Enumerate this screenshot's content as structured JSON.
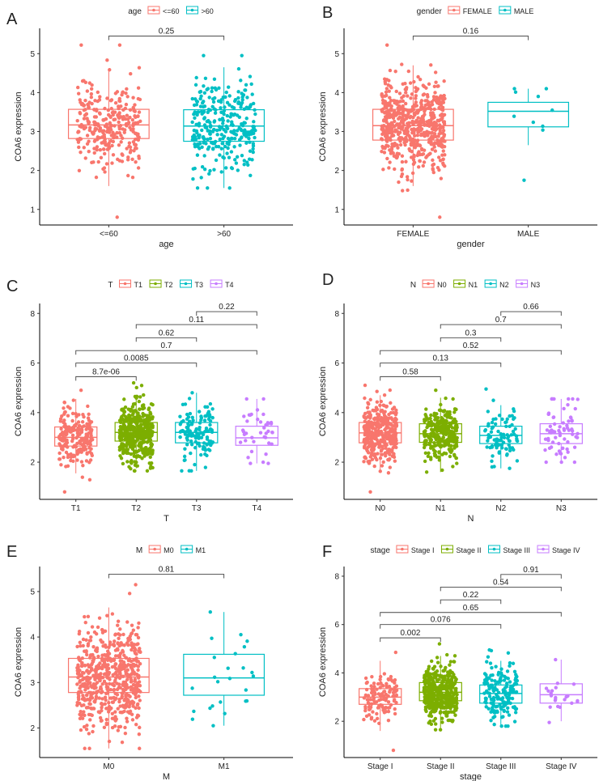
{
  "chart_data": [
    {
      "type": "box",
      "panel_label": "A",
      "legend_title": "age",
      "xlabel": "age",
      "ylabel": "COA6 expression",
      "ylim": [
        0.6,
        5.65
      ],
      "yticks": [
        1,
        2,
        3,
        4,
        5
      ],
      "grid": false,
      "legend_placement": "top",
      "groups": [
        {
          "name": "<=60",
          "color": "#F8766D",
          "q1": 2.82,
          "median": 3.17,
          "q3": 3.57,
          "whisker_low": 1.6,
          "whisker_high": 4.62,
          "n_points": 300,
          "min": 0.8,
          "max": 5.22
        },
        {
          "name": ">60",
          "color": "#00BFC4",
          "q1": 2.75,
          "median": 3.14,
          "q3": 3.56,
          "whisker_low": 1.55,
          "whisker_high": 4.65,
          "n_points": 300,
          "min": 1.55,
          "max": 4.95
        }
      ],
      "comparisons": [
        {
          "from": 0,
          "to": 1,
          "y": 5.45,
          "label": "0.25"
        }
      ]
    },
    {
      "type": "box",
      "panel_label": "B",
      "legend_title": "gender",
      "xlabel": "gender",
      "ylabel": "COA6 expression",
      "ylim": [
        0.6,
        5.65
      ],
      "yticks": [
        1,
        2,
        3,
        4,
        5
      ],
      "grid": false,
      "legend_placement": "top",
      "groups": [
        {
          "name": "FEMALE",
          "color": "#F8766D",
          "q1": 2.78,
          "median": 3.15,
          "q3": 3.57,
          "whisker_low": 1.6,
          "whisker_high": 4.7,
          "n_points": 600,
          "min": 0.8,
          "max": 5.22
        },
        {
          "name": "MALE",
          "color": "#00BFC4",
          "q1": 3.12,
          "median": 3.52,
          "q3": 3.75,
          "whisker_low": 2.65,
          "whisker_high": 4.1,
          "n_points": 10,
          "min": 1.75,
          "max": 4.1
        }
      ],
      "comparisons": [
        {
          "from": 0,
          "to": 1,
          "y": 5.45,
          "label": "0.16"
        }
      ]
    },
    {
      "type": "box",
      "panel_label": "C",
      "legend_title": "T",
      "xlabel": "T",
      "ylabel": "COA6 expression",
      "ylim": [
        0.5,
        8.4
      ],
      "yticks": [
        2,
        4,
        6,
        8
      ],
      "grid": false,
      "legend_placement": "top",
      "groups": [
        {
          "name": "T1",
          "color": "#F8766D",
          "q1": 2.65,
          "median": 3.0,
          "q3": 3.42,
          "whisker_low": 1.55,
          "whisker_high": 4.55,
          "n_points": 200,
          "min": 0.8,
          "max": 4.9
        },
        {
          "name": "T2",
          "color": "#7CAE00",
          "q1": 2.85,
          "median": 3.2,
          "q3": 3.6,
          "whisker_low": 1.75,
          "whisker_high": 4.7,
          "n_points": 450,
          "min": 1.65,
          "max": 5.2
        },
        {
          "name": "T3",
          "color": "#00BFC4",
          "q1": 2.78,
          "median": 3.2,
          "q3": 3.6,
          "whisker_low": 1.65,
          "whisker_high": 4.8,
          "n_points": 120,
          "min": 1.65,
          "max": 4.8
        },
        {
          "name": "T4",
          "color": "#C77CFF",
          "q1": 2.68,
          "median": 2.98,
          "q3": 3.45,
          "whisker_low": 1.95,
          "whisker_high": 4.55,
          "n_points": 40,
          "min": 1.95,
          "max": 4.55
        }
      ],
      "comparisons": [
        {
          "from": 0,
          "to": 1,
          "y": 5.45,
          "label": "8.7e-06"
        },
        {
          "from": 0,
          "to": 2,
          "y": 6.0,
          "label": "0.0085"
        },
        {
          "from": 0,
          "to": 3,
          "y": 6.5,
          "label": "0.7"
        },
        {
          "from": 1,
          "to": 2,
          "y": 7.02,
          "label": "0.62"
        },
        {
          "from": 1,
          "to": 3,
          "y": 7.55,
          "label": "0.11"
        },
        {
          "from": 2,
          "to": 3,
          "y": 8.07,
          "label": "0.22"
        }
      ]
    },
    {
      "type": "box",
      "panel_label": "D",
      "legend_title": "N",
      "xlabel": "N",
      "ylabel": "COA6 expression",
      "ylim": [
        0.5,
        8.4
      ],
      "yticks": [
        2,
        4,
        6,
        8
      ],
      "grid": false,
      "legend_placement": "top",
      "groups": [
        {
          "name": "N0",
          "color": "#F8766D",
          "q1": 2.78,
          "median": 3.18,
          "q3": 3.6,
          "whisker_low": 1.6,
          "whisker_high": 4.7,
          "n_points": 350,
          "min": 0.8,
          "max": 5.1
        },
        {
          "name": "N1",
          "color": "#7CAE00",
          "q1": 2.8,
          "median": 3.15,
          "q3": 3.55,
          "whisker_low": 1.6,
          "whisker_high": 4.6,
          "n_points": 280,
          "min": 1.6,
          "max": 4.9
        },
        {
          "name": "N2",
          "color": "#00BFC4",
          "q1": 2.75,
          "median": 3.08,
          "q3": 3.45,
          "whisker_low": 1.75,
          "whisker_high": 4.3,
          "n_points": 90,
          "min": 1.75,
          "max": 4.95
        },
        {
          "name": "N3",
          "color": "#C77CFF",
          "q1": 2.75,
          "median": 3.15,
          "q3": 3.55,
          "whisker_low": 2.0,
          "whisker_high": 4.55,
          "n_points": 70,
          "min": 2.0,
          "max": 4.55
        }
      ],
      "comparisons": [
        {
          "from": 0,
          "to": 1,
          "y": 5.45,
          "label": "0.58"
        },
        {
          "from": 0,
          "to": 2,
          "y": 6.0,
          "label": "0.13"
        },
        {
          "from": 0,
          "to": 3,
          "y": 6.5,
          "label": "0.52"
        },
        {
          "from": 1,
          "to": 2,
          "y": 7.02,
          "label": "0.3"
        },
        {
          "from": 1,
          "to": 3,
          "y": 7.55,
          "label": "0.7"
        },
        {
          "from": 2,
          "to": 3,
          "y": 8.07,
          "label": "0.66"
        }
      ]
    },
    {
      "type": "box",
      "panel_label": "E",
      "legend_title": "M",
      "xlabel": "M",
      "ylabel": "COA6 expression",
      "ylim": [
        1.35,
        5.55
      ],
      "yticks": [
        2,
        3,
        4,
        5
      ],
      "grid": false,
      "legend_placement": "top",
      "groups": [
        {
          "name": "M0",
          "color": "#F8766D",
          "q1": 2.78,
          "median": 3.12,
          "q3": 3.53,
          "whisker_low": 1.55,
          "whisker_high": 4.65,
          "n_points": 600,
          "min": 1.55,
          "max": 5.15
        },
        {
          "name": "M1",
          "color": "#00BFC4",
          "q1": 2.72,
          "median": 3.1,
          "q3": 3.62,
          "whisker_low": 2.05,
          "whisker_high": 4.55,
          "n_points": 25,
          "min": 2.05,
          "max": 4.55
        }
      ],
      "comparisons": [
        {
          "from": 0,
          "to": 1,
          "y": 5.38,
          "label": "0.81"
        }
      ]
    },
    {
      "type": "box",
      "panel_label": "F",
      "legend_title": "stage",
      "xlabel": "stage",
      "ylabel": "COA6 expression",
      "ylim": [
        0.5,
        8.4
      ],
      "yticks": [
        2,
        4,
        6,
        8
      ],
      "grid": false,
      "legend_placement": "top",
      "groups": [
        {
          "name": "Stage I",
          "color": "#F8766D",
          "q1": 2.7,
          "median": 3.0,
          "q3": 3.35,
          "whisker_low": 1.6,
          "whisker_high": 4.5,
          "n_points": 120,
          "min": 0.8,
          "max": 4.85
        },
        {
          "name": "Stage II",
          "color": "#7CAE00",
          "q1": 2.85,
          "median": 3.2,
          "q3": 3.6,
          "whisker_low": 1.7,
          "whisker_high": 4.7,
          "n_points": 420,
          "min": 1.65,
          "max": 5.2
        },
        {
          "name": "Stage III",
          "color": "#00BFC4",
          "q1": 2.75,
          "median": 3.15,
          "q3": 3.5,
          "whisker_low": 1.8,
          "whisker_high": 4.5,
          "n_points": 170,
          "min": 1.8,
          "max": 4.95
        },
        {
          "name": "Stage IV",
          "color": "#C77CFF",
          "q1": 2.75,
          "median": 3.1,
          "q3": 3.55,
          "whisker_low": 2.0,
          "whisker_high": 4.55,
          "n_points": 22,
          "min": 1.95,
          "max": 4.55
        }
      ],
      "comparisons": [
        {
          "from": 0,
          "to": 1,
          "y": 5.45,
          "label": "0.002"
        },
        {
          "from": 0,
          "to": 2,
          "y": 6.0,
          "label": "0.076"
        },
        {
          "from": 0,
          "to": 3,
          "y": 6.5,
          "label": "0.65"
        },
        {
          "from": 1,
          "to": 2,
          "y": 7.02,
          "label": "0.22"
        },
        {
          "from": 1,
          "to": 3,
          "y": 7.55,
          "label": "0.54"
        },
        {
          "from": 2,
          "to": 3,
          "y": 8.07,
          "label": "0.91"
        }
      ]
    }
  ]
}
